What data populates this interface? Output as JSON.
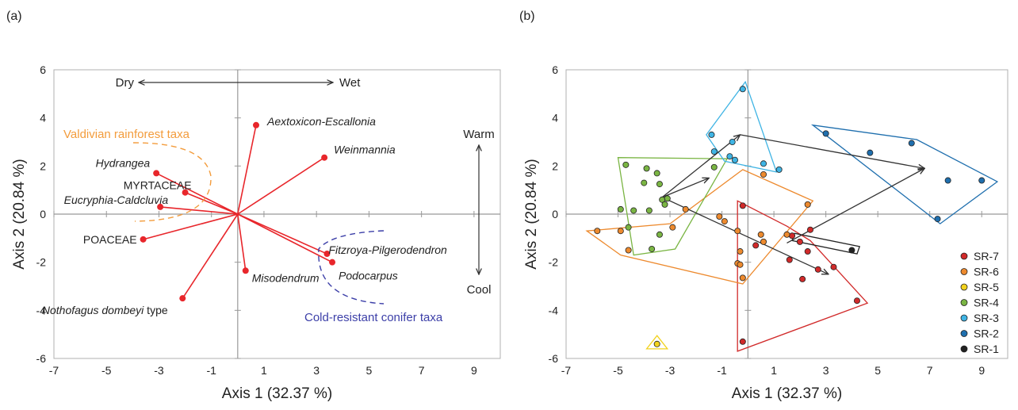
{
  "panels": {
    "a_label": "(a)",
    "b_label": "(b)"
  },
  "colors": {
    "vector": "#e8262b",
    "valdivian": "#f39c3c",
    "conifer": "#3c3fa8",
    "axis": "#999999",
    "grid_tick": "#999999"
  },
  "chart_data": [
    {
      "type": "scatter",
      "panel": "(a)",
      "xlabel": "Axis 1 (32.37 %)",
      "ylabel": "Axis 2 (20.84 %)",
      "xlim": [
        -7,
        10
      ],
      "ylim": [
        -6,
        6
      ],
      "xticks": [
        -7,
        -5,
        -3,
        -1,
        1,
        3,
        5,
        7,
        9
      ],
      "yticks": [
        -6,
        -4,
        -2,
        0,
        2,
        4,
        6
      ],
      "vectors": [
        {
          "label": "Aextoxicon-Escallonia",
          "x": 0.7,
          "y": 3.7,
          "italic": true
        },
        {
          "label": "Weinmannia",
          "x": 3.3,
          "y": 2.35,
          "italic": true
        },
        {
          "label": "Hydrangea",
          "x": -3.1,
          "y": 1.7,
          "italic": true
        },
        {
          "label": "MYRTACEAE",
          "x": -2.0,
          "y": 0.9,
          "italic": false
        },
        {
          "label": "Eucryphia-Caldcluvia",
          "x": -2.95,
          "y": 0.3,
          "italic": true
        },
        {
          "label": "POACEAE",
          "x": -3.6,
          "y": -1.05,
          "italic": false
        },
        {
          "label": "Nothofagus dombeyi",
          "suffix": " type",
          "x": -2.1,
          "y": -3.5,
          "italic": true
        },
        {
          "label": "Misodendrum",
          "x": 0.3,
          "y": -2.35,
          "italic": true
        },
        {
          "label": "Fitzroya-Pilgerodendron",
          "x": 3.4,
          "y": -1.65,
          "italic": true
        },
        {
          "label": "Podocarpus",
          "x": 3.6,
          "y": -2.0,
          "italic": true
        }
      ],
      "annotations": {
        "dry": "Dry",
        "wet": "Wet",
        "warm": "Warm",
        "cool": "Cool",
        "valdivian": "Valdivian rainforest taxa",
        "conifer": "Cold-resistant conifer taxa"
      }
    },
    {
      "type": "scatter",
      "panel": "(b)",
      "xlabel": "Axis 1 (32.37 %)",
      "ylabel": "Axis 2 (20.84 %)",
      "xlim": [
        -7,
        10
      ],
      "ylim": [
        -6,
        6
      ],
      "xticks": [
        -7,
        -5,
        -3,
        -1,
        1,
        3,
        5,
        7,
        9
      ],
      "yticks": [
        -6,
        -4,
        -2,
        0,
        2,
        4,
        6
      ],
      "legend_position": "bottom-right",
      "series": [
        {
          "name": "SR-7",
          "color": "#d12a2a",
          "points": [
            [
              -0.2,
              0.35
            ],
            [
              0.3,
              -1.3
            ],
            [
              1.7,
              -0.9
            ],
            [
              2.0,
              -1.15
            ],
            [
              2.4,
              -0.65
            ],
            [
              2.3,
              -1.55
            ],
            [
              1.6,
              -1.9
            ],
            [
              2.1,
              -2.7
            ],
            [
              2.7,
              -2.3
            ],
            [
              3.3,
              -2.2
            ],
            [
              4.2,
              -3.6
            ],
            [
              -0.2,
              -5.3
            ]
          ],
          "hull": [
            [
              -0.4,
              0.55
            ],
            [
              1.5,
              -0.5
            ],
            [
              2.4,
              -1.1
            ],
            [
              4.6,
              -3.7
            ],
            [
              -0.4,
              -5.7
            ]
          ]
        },
        {
          "name": "SR-6",
          "color": "#ed8a2e",
          "points": [
            [
              -4.9,
              -0.7
            ],
            [
              -5.8,
              -0.7
            ],
            [
              -4.6,
              -1.5
            ],
            [
              -2.4,
              0.2
            ],
            [
              -2.9,
              -0.55
            ],
            [
              -1.1,
              -0.1
            ],
            [
              -0.9,
              -0.3
            ],
            [
              -0.4,
              -0.7
            ],
            [
              -0.3,
              -1.55
            ],
            [
              -0.4,
              -2.05
            ],
            [
              -0.3,
              -2.1
            ],
            [
              -0.2,
              -2.65
            ],
            [
              0.5,
              -0.85
            ],
            [
              0.6,
              -1.15
            ],
            [
              1.5,
              -0.85
            ],
            [
              2.3,
              0.4
            ],
            [
              0.6,
              1.65
            ]
          ],
          "hull": [
            [
              -6.2,
              -0.7
            ],
            [
              -3.0,
              -0.4
            ],
            [
              -0.2,
              1.85
            ],
            [
              2.5,
              0.55
            ],
            [
              -0.2,
              -2.9
            ],
            [
              -4.9,
              -1.7
            ]
          ]
        },
        {
          "name": "SR-5",
          "color": "#f2d21e",
          "points": [
            [
              -3.5,
              -5.4
            ]
          ],
          "hull": [
            [
              -3.5,
              -5.05
            ],
            [
              -3.1,
              -5.6
            ],
            [
              -3.9,
              -5.6
            ]
          ]
        },
        {
          "name": "SR-4",
          "color": "#7ab543",
          "points": [
            [
              -4.7,
              2.05
            ],
            [
              -3.9,
              1.9
            ],
            [
              -3.5,
              1.7
            ],
            [
              -4.0,
              1.3
            ],
            [
              -3.4,
              1.25
            ],
            [
              -3.3,
              0.6
            ],
            [
              -3.1,
              0.65
            ],
            [
              -3.2,
              0.4
            ],
            [
              -4.6,
              -0.55
            ],
            [
              -4.4,
              0.15
            ],
            [
              -3.8,
              0.15
            ],
            [
              -3.4,
              -0.85
            ],
            [
              -1.3,
              1.95
            ],
            [
              -3.7,
              -1.45
            ],
            [
              -4.9,
              0.2
            ]
          ],
          "hull": [
            [
              -5.0,
              2.35
            ],
            [
              -0.8,
              2.3
            ],
            [
              -2.8,
              -1.45
            ],
            [
              -4.4,
              -1.7
            ]
          ]
        },
        {
          "name": "SR-3",
          "color": "#3fb4e4",
          "points": [
            [
              -0.2,
              5.2
            ],
            [
              -1.4,
              3.3
            ],
            [
              -0.6,
              3.0
            ],
            [
              -1.3,
              2.6
            ],
            [
              -0.7,
              2.4
            ],
            [
              -0.5,
              2.25
            ],
            [
              0.6,
              2.1
            ],
            [
              1.2,
              1.85
            ]
          ],
          "hull": [
            [
              -0.1,
              5.5
            ],
            [
              1.1,
              1.75
            ],
            [
              -0.9,
              2.2
            ],
            [
              -1.6,
              3.3
            ]
          ]
        },
        {
          "name": "SR-2",
          "color": "#1f6fae",
          "points": [
            [
              3.0,
              3.35
            ],
            [
              4.7,
              2.55
            ],
            [
              6.3,
              2.95
            ],
            [
              7.7,
              1.4
            ],
            [
              9.0,
              1.4
            ],
            [
              7.3,
              -0.2
            ]
          ],
          "hull": [
            [
              2.5,
              3.7
            ],
            [
              6.5,
              3.1
            ],
            [
              9.6,
              1.35
            ],
            [
              7.4,
              -0.4
            ]
          ]
        },
        {
          "name": "SR-1",
          "color": "#222222",
          "points": [
            [
              4.0,
              -1.5
            ]
          ],
          "hull": [
            [
              1.8,
              -0.8
            ],
            [
              4.3,
              -1.35
            ],
            [
              4.2,
              -1.65
            ],
            [
              1.7,
              -1.1
            ]
          ]
        }
      ],
      "arrows": [
        {
          "from": [
            -3.3,
            0.7
          ],
          "to": [
            -0.3,
            3.3
          ]
        },
        {
          "from": [
            -0.3,
            3.3
          ],
          "to": [
            6.8,
            1.9
          ]
        },
        {
          "from": [
            1.5,
            -1.2
          ],
          "to": [
            6.8,
            1.9
          ]
        },
        {
          "from": [
            -3.3,
            0.7
          ],
          "to": [
            -1.5,
            1.5
          ]
        },
        {
          "from": [
            -3.3,
            0.7
          ],
          "to": [
            3.1,
            -2.5
          ]
        }
      ]
    }
  ]
}
